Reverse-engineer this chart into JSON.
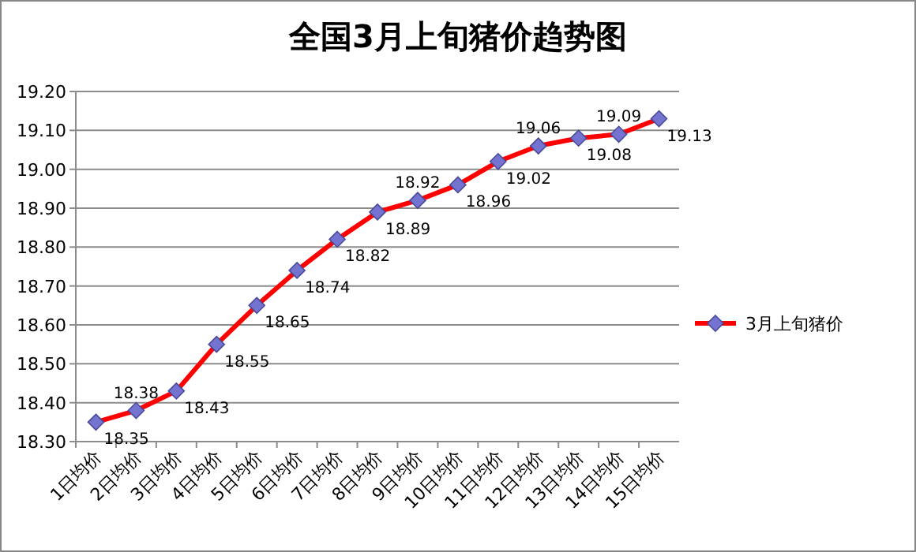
{
  "chart_data": {
    "type": "line",
    "title": "全国3月上旬猪价趋势图",
    "categories": [
      "1日均价",
      "2日均价",
      "3日均价",
      "4日均价",
      "5日均价",
      "6日均价",
      "7日均价",
      "8日均价",
      "9日均价",
      "10日均价",
      "11日均价",
      "12日均价",
      "13日均价",
      "14日均价",
      "15日均价"
    ],
    "series": [
      {
        "name": "3月上旬猪价",
        "color": "#ff0000",
        "values": [
          18.35,
          18.38,
          18.43,
          18.55,
          18.65,
          18.74,
          18.82,
          18.89,
          18.92,
          18.96,
          19.02,
          19.06,
          19.08,
          19.09,
          19.13
        ]
      }
    ],
    "ylim": [
      18.3,
      19.2
    ],
    "yticks": [
      {
        "value": 18.3,
        "label": "18.30"
      },
      {
        "value": 18.4,
        "label": "18.40"
      },
      {
        "value": 18.5,
        "label": "18.50"
      },
      {
        "value": 18.6,
        "label": "18.60"
      },
      {
        "value": 18.7,
        "label": "18.70"
      },
      {
        "value": 18.8,
        "label": "18.80"
      },
      {
        "value": 18.9,
        "label": "18.90"
      },
      {
        "value": 19.0,
        "label": "19.00"
      },
      {
        "value": 19.1,
        "label": "19.10"
      },
      {
        "value": 19.2,
        "label": "19.20"
      }
    ],
    "grid": "y",
    "marker": "diamond",
    "legend": "right",
    "data_labels": true
  }
}
